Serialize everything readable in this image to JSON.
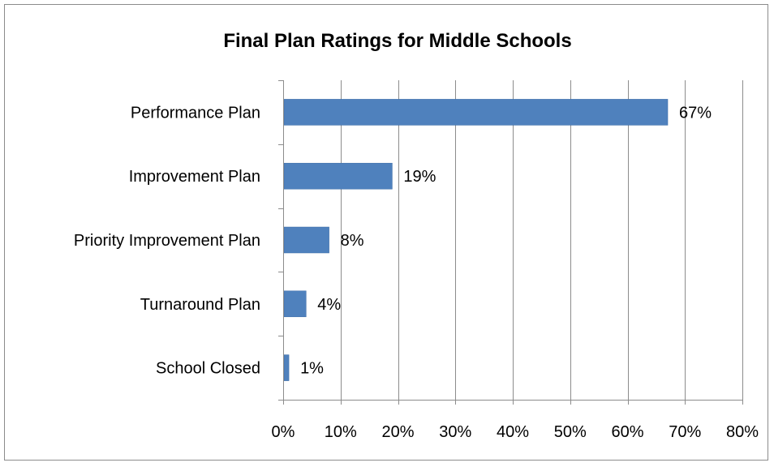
{
  "chart_data": {
    "type": "bar",
    "orientation": "horizontal",
    "title": "Final Plan Ratings for Middle Schools",
    "categories": [
      "Performance Plan",
      "Improvement Plan",
      "Priority Improvement  Plan",
      "Turnaround Plan",
      "School Closed"
    ],
    "values": [
      67,
      19,
      8,
      4,
      1
    ],
    "data_labels": [
      "67%",
      "19%",
      "8%",
      "4%",
      "1%"
    ],
    "xlim": [
      0,
      80
    ],
    "x_ticks": [
      0,
      10,
      20,
      30,
      40,
      50,
      60,
      70,
      80
    ],
    "x_tick_labels": [
      "0%",
      "10%",
      "20%",
      "30%",
      "40%",
      "50%",
      "60%",
      "70%",
      "80%"
    ],
    "grid": true,
    "legend": "none",
    "colors": {
      "bar": "#4f81bd",
      "bar_border": "#3a6aa6",
      "grid": "#8c8c8c",
      "axis": "#8c8c8c",
      "text": "#000000",
      "frame": "#8c8c8c"
    }
  }
}
